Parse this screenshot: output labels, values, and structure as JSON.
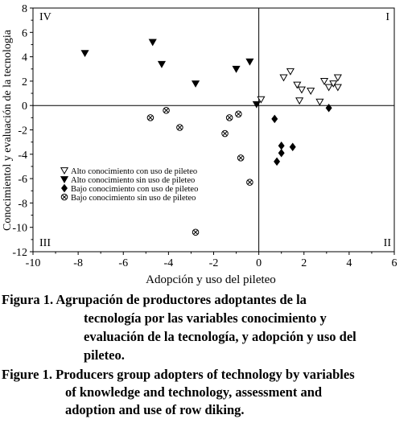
{
  "chart_data": {
    "type": "scatter",
    "xlabel": "Adopción y uso del pileteo",
    "ylabel": "Conocimientol y evaluación de la tecnologia",
    "xlim": [
      -10,
      6
    ],
    "ylim": [
      -12,
      8
    ],
    "xticks": [
      "-10",
      "-8",
      "-6",
      "-4",
      "-2",
      "0",
      "2",
      "4",
      "6"
    ],
    "yticks": [
      "-12",
      "-10",
      "-8",
      "-6",
      "-4",
      "-2",
      "0",
      "2",
      "4",
      "6",
      "8"
    ],
    "quadrants": [
      "I",
      "II",
      "III",
      "IV"
    ],
    "legend_position": "left-middle",
    "series": [
      {
        "name": "Alto conocimiento con uso de pileteo",
        "marker": "open-triangle-down",
        "points": [
          [
            0.1,
            0.5
          ],
          [
            1.1,
            2.3
          ],
          [
            1.4,
            2.8
          ],
          [
            1.7,
            1.7
          ],
          [
            1.8,
            0.4
          ],
          [
            1.9,
            1.3
          ],
          [
            2.3,
            1.2
          ],
          [
            2.7,
            0.3
          ],
          [
            2.9,
            2.0
          ],
          [
            3.1,
            1.5
          ],
          [
            3.3,
            1.8
          ],
          [
            3.5,
            1.5
          ],
          [
            3.5,
            2.3
          ]
        ]
      },
      {
        "name": "Alto conocimiento sin uso de pileteo",
        "marker": "filled-triangle-down",
        "points": [
          [
            -7.7,
            4.3
          ],
          [
            -4.7,
            5.2
          ],
          [
            -4.3,
            3.4
          ],
          [
            -2.8,
            1.8
          ],
          [
            -1.0,
            3.0
          ],
          [
            -0.4,
            3.6
          ],
          [
            -0.1,
            0.1
          ]
        ]
      },
      {
        "name": "Bajo conocimiento con uso de pileteo",
        "marker": "filled-diamond",
        "points": [
          [
            0.7,
            -1.1
          ],
          [
            0.8,
            -4.6
          ],
          [
            1.0,
            -3.3
          ],
          [
            1.0,
            -3.9
          ],
          [
            1.5,
            -3.4
          ],
          [
            3.1,
            -0.2
          ]
        ]
      },
      {
        "name": "Bajo conocimiento sin uso de pileteo",
        "marker": "open-diamond",
        "points": [
          [
            -4.8,
            -1.0
          ],
          [
            -4.1,
            -0.4
          ],
          [
            -3.5,
            -1.8
          ],
          [
            -2.8,
            -10.4
          ],
          [
            -1.5,
            -2.3
          ],
          [
            -1.3,
            -1.0
          ],
          [
            -0.9,
            -0.7
          ],
          [
            -0.8,
            -4.3
          ],
          [
            -0.4,
            -6.3
          ]
        ]
      }
    ]
  },
  "caption": {
    "es": {
      "lines": [
        "Figura 1. Agrupación de productores adoptantes de la",
        "tecnología por las variables conocimiento y",
        "evaluación de la tecnología, y adopción y uso del",
        "pileteo."
      ]
    },
    "en": {
      "lines": [
        "Figure 1. Producers group adopters of technology by variables",
        "of knowledge and technology, assessment and",
        "adoption and use of row diking."
      ]
    }
  }
}
